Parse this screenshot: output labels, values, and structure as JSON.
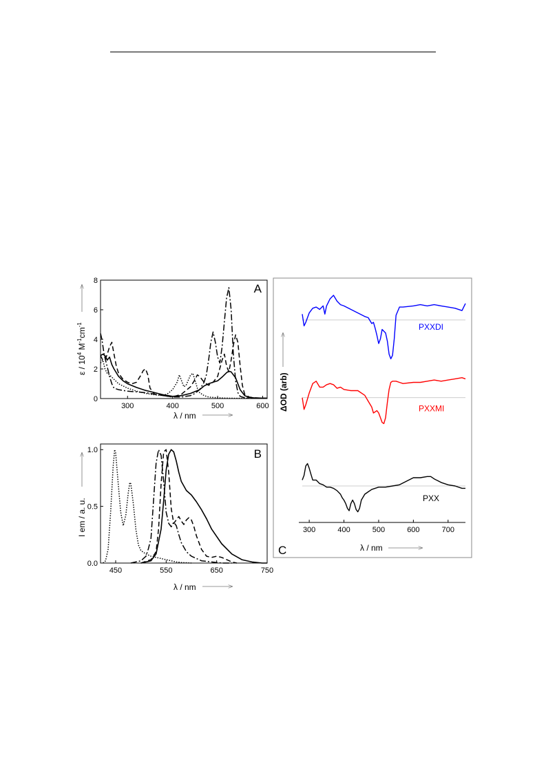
{
  "chart_data": [
    {
      "panel": "A",
      "type": "line",
      "letter": "A",
      "ylabel_base": "ε / 10",
      "ylabel_exp1": "4",
      "ylabel_mid": " M",
      "ylabel_exp2": "-1",
      "ylabel_end": "cm",
      "ylabel_exp3": "-1",
      "xlabel": "λ / nm",
      "xlim": [
        240,
        610
      ],
      "ylim": [
        0,
        8
      ],
      "xticks": [
        300,
        400,
        500,
        600
      ],
      "yticks": [
        0,
        2,
        4,
        6,
        8
      ],
      "series": [
        {
          "style": "solid",
          "x": [
            240,
            245,
            250,
            255,
            260,
            265,
            270,
            280,
            290,
            300,
            320,
            340,
            360,
            380,
            400,
            420,
            440,
            460,
            470,
            480,
            490,
            500,
            510,
            520,
            525,
            530,
            540,
            550,
            560,
            570,
            580,
            600,
            610
          ],
          "y": [
            2.9,
            3.0,
            2.9,
            2.6,
            2.8,
            2.3,
            2.0,
            1.5,
            1.2,
            1.0,
            0.75,
            0.55,
            0.4,
            0.25,
            0.15,
            0.2,
            0.35,
            0.6,
            0.85,
            1.0,
            1.1,
            1.2,
            1.45,
            1.75,
            1.85,
            1.8,
            1.4,
            0.6,
            0.2,
            0.08,
            0.05,
            0.03,
            0.02
          ]
        },
        {
          "style": "dashdot",
          "x": [
            240,
            243,
            248,
            252,
            256,
            260,
            265,
            270,
            280,
            290,
            300,
            320,
            340,
            360,
            380,
            400,
            420,
            440,
            450,
            460,
            470,
            475,
            480,
            485,
            490,
            495,
            500,
            505,
            510,
            515,
            520,
            525,
            530,
            535,
            540,
            545,
            550,
            560,
            580,
            600,
            610
          ],
          "y": [
            4.4,
            4.0,
            3.0,
            2.5,
            2.0,
            1.5,
            1.0,
            0.7,
            0.6,
            0.55,
            0.5,
            0.45,
            0.4,
            0.3,
            0.2,
            0.1,
            0.1,
            0.2,
            0.35,
            0.6,
            1.1,
            1.6,
            2.6,
            3.8,
            4.5,
            3.8,
            2.8,
            2.4,
            3.5,
            5.2,
            6.8,
            7.5,
            6.0,
            3.0,
            1.2,
            0.4,
            0.15,
            0.05,
            0.03,
            0.02,
            0.02
          ]
        },
        {
          "style": "dashed",
          "x": [
            240,
            245,
            250,
            255,
            260,
            265,
            270,
            275,
            280,
            290,
            300,
            310,
            320,
            330,
            335,
            340,
            345,
            350,
            360,
            380,
            400,
            420,
            440,
            450,
            455,
            460,
            470,
            480,
            490,
            500,
            510,
            515,
            520,
            525,
            530,
            535,
            540,
            545,
            550,
            555,
            560,
            570,
            580,
            600,
            610
          ],
          "y": [
            2.9,
            2.6,
            2.6,
            3.0,
            3.5,
            3.8,
            3.0,
            2.2,
            1.7,
            1.3,
            1.1,
            1.0,
            1.1,
            1.6,
            1.9,
            2.0,
            1.6,
            0.7,
            0.3,
            0.2,
            0.1,
            0.3,
            0.8,
            1.3,
            1.6,
            1.5,
            1.1,
            0.9,
            1.1,
            1.5,
            2.6,
            3.0,
            2.2,
            1.8,
            2.6,
            3.6,
            4.3,
            3.8,
            2.2,
            0.9,
            0.3,
            0.1,
            0.05,
            0.03,
            0.02
          ]
        },
        {
          "style": "dotted",
          "x": [
            240,
            245,
            250,
            255,
            260,
            270,
            280,
            290,
            300,
            320,
            340,
            360,
            380,
            390,
            400,
            410,
            415,
            420,
            425,
            430,
            440,
            445,
            450,
            455,
            460,
            470,
            480,
            500,
            520,
            540,
            560,
            600,
            610
          ],
          "y": [
            2.4,
            2.6,
            2.0,
            1.7,
            1.6,
            1.3,
            1.0,
            0.85,
            0.7,
            0.5,
            0.35,
            0.25,
            0.2,
            0.35,
            0.6,
            1.1,
            1.6,
            1.2,
            0.8,
            0.9,
            1.6,
            1.7,
            1.2,
            0.7,
            0.4,
            0.2,
            0.1,
            0.05,
            0.03,
            0.02,
            0.02,
            0.02,
            0.02
          ]
        }
      ]
    },
    {
      "panel": "B",
      "type": "line",
      "letter": "B",
      "ylabel": "I em / a. u.",
      "xlabel": "λ / nm",
      "xlim": [
        420,
        750
      ],
      "ylim": [
        0,
        1.05
      ],
      "xticks": [
        450,
        550,
        650,
        750
      ],
      "yticks": [
        0.0,
        0.5,
        1.0
      ],
      "ytick_labels": [
        "0.0",
        "0.5",
        "1.0"
      ],
      "series": [
        {
          "style": "dotted",
          "x": [
            425,
            430,
            435,
            440,
            445,
            448,
            450,
            455,
            460,
            465,
            470,
            475,
            478,
            480,
            485,
            490,
            495,
            500,
            510,
            520,
            530,
            540,
            550,
            560,
            570,
            580,
            600
          ],
          "y": [
            0.0,
            0.02,
            0.12,
            0.45,
            0.85,
            1.0,
            0.97,
            0.7,
            0.45,
            0.33,
            0.42,
            0.62,
            0.71,
            0.7,
            0.52,
            0.3,
            0.16,
            0.11,
            0.08,
            0.06,
            0.05,
            0.04,
            0.03,
            0.02,
            0.01,
            0.005,
            0.0
          ]
        },
        {
          "style": "dashdot",
          "x": [
            480,
            500,
            510,
            515,
            520,
            525,
            530,
            535,
            540,
            545,
            550,
            555,
            560,
            565,
            570,
            575,
            580,
            590,
            600,
            610,
            620,
            640,
            660,
            680
          ],
          "y": [
            0.0,
            0.02,
            0.06,
            0.13,
            0.22,
            0.55,
            0.88,
            1.0,
            0.95,
            0.72,
            0.45,
            0.35,
            0.32,
            0.36,
            0.33,
            0.25,
            0.18,
            0.1,
            0.06,
            0.04,
            0.02,
            0.01,
            0.0,
            0.0
          ]
        },
        {
          "style": "dashed",
          "x": [
            500,
            520,
            530,
            535,
            540,
            545,
            550,
            555,
            560,
            565,
            570,
            575,
            580,
            585,
            590,
            595,
            600,
            605,
            610,
            620,
            630,
            640,
            650,
            660,
            670,
            680,
            690
          ],
          "y": [
            0.0,
            0.03,
            0.1,
            0.3,
            0.7,
            0.98,
            1.0,
            0.8,
            0.48,
            0.35,
            0.38,
            0.41,
            0.37,
            0.34,
            0.38,
            0.4,
            0.38,
            0.32,
            0.24,
            0.12,
            0.06,
            0.05,
            0.06,
            0.05,
            0.03,
            0.01,
            0.0
          ]
        },
        {
          "style": "solid",
          "x": [
            500,
            520,
            530,
            540,
            545,
            550,
            555,
            560,
            565,
            570,
            575,
            580,
            590,
            600,
            610,
            620,
            630,
            640,
            660,
            680,
            700,
            720,
            740,
            750
          ],
          "y": [
            0.0,
            0.02,
            0.08,
            0.3,
            0.55,
            0.82,
            0.96,
            1.0,
            0.98,
            0.9,
            0.8,
            0.72,
            0.64,
            0.6,
            0.54,
            0.47,
            0.39,
            0.3,
            0.17,
            0.08,
            0.03,
            0.01,
            0.0,
            0.0
          ]
        }
      ]
    },
    {
      "panel": "C",
      "type": "line",
      "letter": "C",
      "ylabel": "ΔOD (arb)",
      "xlabel": "λ / nm",
      "xlim": [
        270,
        750
      ],
      "ylim": [
        0,
        10
      ],
      "xticks": [
        300,
        400,
        500,
        600,
        700
      ],
      "series": [
        {
          "name": "PXXDI",
          "color": "#0000ff",
          "baseline": 8.6,
          "x": [
            280,
            285,
            290,
            300,
            310,
            320,
            330,
            340,
            345,
            350,
            360,
            370,
            380,
            390,
            400,
            420,
            440,
            460,
            470,
            480,
            485,
            490,
            495,
            500,
            505,
            510,
            520,
            525,
            530,
            535,
            540,
            545,
            550,
            560,
            570,
            600,
            620,
            640,
            660,
            680,
            700,
            720,
            740,
            750
          ],
          "y": [
            8.85,
            8.35,
            8.5,
            8.9,
            9.1,
            9.15,
            9.05,
            9.2,
            8.85,
            9.2,
            9.5,
            9.65,
            9.4,
            9.25,
            9.2,
            9.05,
            8.9,
            8.75,
            8.7,
            8.45,
            8.5,
            8.25,
            7.95,
            7.6,
            7.8,
            8.2,
            8.05,
            7.7,
            7.15,
            6.95,
            7.1,
            7.8,
            8.8,
            9.15,
            9.15,
            9.2,
            9.25,
            9.2,
            9.25,
            9.2,
            9.15,
            9.1,
            9.0,
            9.3
          ]
        },
        {
          "name": "PXXMI",
          "color": "#ff0000",
          "baseline": 5.3,
          "x": [
            280,
            285,
            290,
            300,
            310,
            320,
            330,
            340,
            350,
            360,
            370,
            380,
            390,
            400,
            420,
            440,
            460,
            470,
            480,
            485,
            490,
            495,
            500,
            505,
            510,
            515,
            520,
            525,
            530,
            535,
            540,
            550,
            560,
            570,
            600,
            620,
            640,
            660,
            680,
            700,
            720,
            740,
            750
          ],
          "y": [
            5.3,
            4.8,
            5.0,
            5.5,
            5.9,
            6.0,
            5.75,
            5.75,
            5.85,
            5.9,
            5.85,
            5.7,
            5.75,
            5.65,
            5.6,
            5.6,
            5.4,
            5.15,
            4.9,
            4.65,
            4.7,
            4.75,
            4.65,
            4.45,
            4.25,
            4.2,
            4.45,
            5.1,
            5.65,
            5.95,
            6.0,
            6.0,
            5.95,
            5.9,
            5.95,
            5.95,
            6.0,
            6.05,
            6.0,
            6.05,
            6.1,
            6.15,
            6.1
          ]
        },
        {
          "name": "PXX",
          "color": "#000000",
          "baseline": 1.55,
          "x": [
            280,
            285,
            290,
            295,
            300,
            305,
            310,
            320,
            330,
            340,
            350,
            360,
            370,
            380,
            390,
            395,
            400,
            405,
            410,
            415,
            420,
            425,
            430,
            435,
            440,
            445,
            450,
            460,
            470,
            480,
            500,
            520,
            540,
            560,
            580,
            600,
            620,
            640,
            650,
            660,
            680,
            700,
            720,
            740,
            750
          ],
          "y": [
            1.8,
            2.0,
            2.4,
            2.5,
            2.3,
            2.05,
            1.8,
            1.8,
            1.65,
            1.6,
            1.5,
            1.5,
            1.45,
            1.35,
            1.2,
            1.05,
            0.95,
            0.8,
            0.6,
            0.5,
            0.8,
            0.95,
            0.8,
            0.55,
            0.45,
            0.6,
            0.95,
            1.2,
            1.3,
            1.4,
            1.5,
            1.5,
            1.55,
            1.6,
            1.75,
            1.9,
            1.9,
            1.95,
            1.95,
            1.85,
            1.7,
            1.6,
            1.55,
            1.45,
            1.45
          ]
        }
      ]
    }
  ]
}
